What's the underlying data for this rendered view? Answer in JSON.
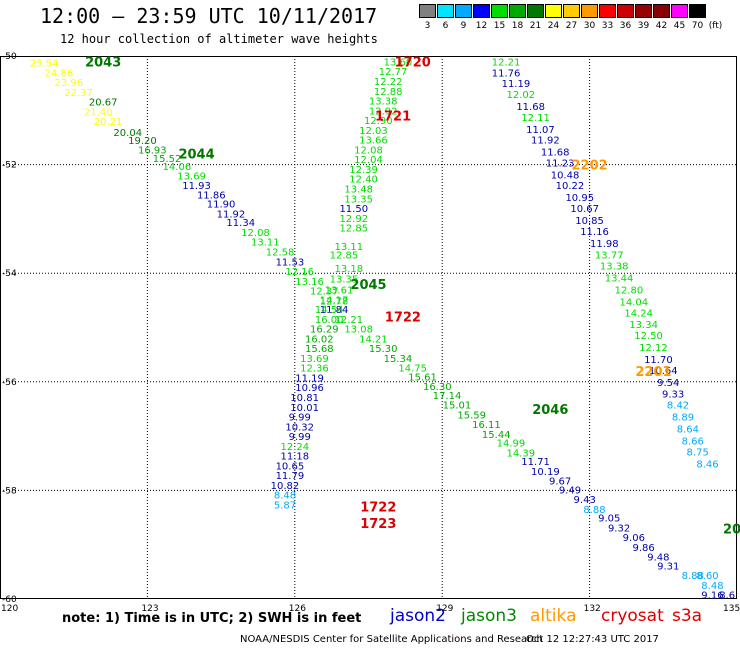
{
  "header": {
    "title": "12:00 – 23:59 UTC 10/11/2017",
    "subtitle": "12 hour collection of altimeter wave heights"
  },
  "color_scale": {
    "labels": [
      "3",
      "6",
      "9",
      "12",
      "15",
      "18",
      "21",
      "24",
      "27",
      "30",
      "33",
      "36",
      "39",
      "42",
      "45",
      "70",
      "(ft)"
    ],
    "colors": [
      "#808080",
      "#00e5ff",
      "#00aaff",
      "#0000ff",
      "#00dd00",
      "#00aa00",
      "#007700",
      "#ffff00",
      "#ffcc00",
      "#ff9900",
      "#ff0000",
      "#cc0000",
      "#990000",
      "#880000",
      "#ff00ff",
      "#000000"
    ]
  },
  "note": "note: 1) Time is in UTC; 2) SWH is in feet",
  "legend": [
    {
      "label": "jason2",
      "color": "#0000cc"
    },
    {
      "label": "jason3",
      "color": "#008800"
    },
    {
      "label": "altika",
      "color": "#ff9900"
    },
    {
      "label": "cryosat",
      "color": "#dd0000"
    },
    {
      "label": "s3a",
      "color": "#dd0000"
    }
  ],
  "footer": {
    "left": "NOAA/NESDIS Center for Satellite Applications and Research",
    "right": "Oct 12 12:27:43 UTC 2017"
  },
  "chart_data": {
    "type": "scatter",
    "xlim": [
      120,
      135
    ],
    "ylim": [
      -60,
      -50
    ],
    "grid": true,
    "x_ticks": [
      "120",
      "123",
      "126",
      "129",
      "132",
      "135"
    ],
    "y_ticks": [
      "-50",
      "-52",
      "-54",
      "-56",
      "-58",
      "-60"
    ],
    "pass_labels": [
      {
        "text": "2043",
        "lon": 122.1,
        "lat": -50.1,
        "color": "#007700"
      },
      {
        "text": "2044",
        "lon": 124.0,
        "lat": -51.8,
        "color": "#007700"
      },
      {
        "text": "2045",
        "lon": 127.5,
        "lat": -54.2,
        "color": "#007700"
      },
      {
        "text": "2046",
        "lon": 131.2,
        "lat": -56.5,
        "color": "#007700"
      },
      {
        "text": "20",
        "lon": 134.9,
        "lat": -58.7,
        "color": "#007700"
      },
      {
        "text": "1720",
        "lon": 128.4,
        "lat": -50.1,
        "color": "#dd0000"
      },
      {
        "text": "1721",
        "lon": 128.0,
        "lat": -51.1,
        "color": "#dd0000"
      },
      {
        "text": "1722",
        "lon": 128.2,
        "lat": -54.8,
        "color": "#dd0000"
      },
      {
        "text": "1722",
        "lon": 127.7,
        "lat": -58.3,
        "color": "#dd0000"
      },
      {
        "text": "1723",
        "lon": 127.7,
        "lat": -58.6,
        "color": "#dd0000"
      },
      {
        "text": "2202",
        "lon": 132.0,
        "lat": -52.0,
        "color": "#ff9900"
      },
      {
        "text": "2201",
        "lon": 133.3,
        "lat": -55.8,
        "color": "#ff9900"
      }
    ],
    "points": [
      {
        "lon": 120.9,
        "lat": -50.12,
        "v": "25.54",
        "c": "#ffff00"
      },
      {
        "lon": 121.2,
        "lat": -50.3,
        "v": "24.86",
        "c": "#ffff00"
      },
      {
        "lon": 121.4,
        "lat": -50.48,
        "v": "23.96",
        "c": "#ffff00"
      },
      {
        "lon": 121.6,
        "lat": -50.66,
        "v": "22.37",
        "c": "#ffff00"
      },
      {
        "lon": 122.1,
        "lat": -50.84,
        "v": "20.67",
        "c": "#007700"
      },
      {
        "lon": 122.0,
        "lat": -51.02,
        "v": "21.40",
        "c": "#ffff00"
      },
      {
        "lon": 122.2,
        "lat": -51.2,
        "v": "20.21",
        "c": "#ffff00"
      },
      {
        "lon": 122.6,
        "lat": -51.4,
        "v": "20.04",
        "c": "#007700"
      },
      {
        "lon": 122.9,
        "lat": -51.55,
        "v": "19.20",
        "c": "#007700"
      },
      {
        "lon": 123.1,
        "lat": -51.72,
        "v": "16.93",
        "c": "#00aa00"
      },
      {
        "lon": 123.4,
        "lat": -51.88,
        "v": "15.52",
        "c": "#00aa00"
      },
      {
        "lon": 123.6,
        "lat": -52.03,
        "v": "14.06",
        "c": "#00dd00"
      },
      {
        "lon": 123.9,
        "lat": -52.2,
        "v": "13.69",
        "c": "#00dd00"
      },
      {
        "lon": 124.0,
        "lat": -52.38,
        "v": "11.93",
        "c": "#0000aa"
      },
      {
        "lon": 124.3,
        "lat": -52.55,
        "v": "11.86",
        "c": "#0000aa"
      },
      {
        "lon": 124.5,
        "lat": -52.72,
        "v": "11.90",
        "c": "#0000aa"
      },
      {
        "lon": 124.7,
        "lat": -52.9,
        "v": "11.92",
        "c": "#0000aa"
      },
      {
        "lon": 124.9,
        "lat": -53.06,
        "v": "11.34",
        "c": "#0000aa"
      },
      {
        "lon": 125.2,
        "lat": -53.24,
        "v": "12.08",
        "c": "#00dd00"
      },
      {
        "lon": 125.4,
        "lat": -53.42,
        "v": "13.11",
        "c": "#00dd00"
      },
      {
        "lon": 125.7,
        "lat": -53.6,
        "v": "12.58",
        "c": "#00dd00"
      },
      {
        "lon": 125.9,
        "lat": -53.78,
        "v": "11.53",
        "c": "#0000aa"
      },
      {
        "lon": 126.1,
        "lat": -53.96,
        "v": "12.16",
        "c": "#00dd00"
      },
      {
        "lon": 126.3,
        "lat": -54.14,
        "v": "13.16",
        "c": "#00dd00"
      },
      {
        "lon": 126.6,
        "lat": -54.32,
        "v": "12.37",
        "c": "#00dd00"
      },
      {
        "lon": 126.8,
        "lat": -54.5,
        "v": "12.78",
        "c": "#00dd00"
      },
      {
        "lon": 126.8,
        "lat": -54.66,
        "v": "11.84",
        "c": "#0000aa"
      },
      {
        "lon": 127.1,
        "lat": -54.84,
        "v": "12.21",
        "c": "#00dd00"
      },
      {
        "lon": 127.3,
        "lat": -55.02,
        "v": "13.08",
        "c": "#00dd00"
      },
      {
        "lon": 127.6,
        "lat": -55.2,
        "v": "14.21",
        "c": "#00dd00"
      },
      {
        "lon": 127.8,
        "lat": -55.38,
        "v": "15.30",
        "c": "#00aa00"
      },
      {
        "lon": 128.1,
        "lat": -55.56,
        "v": "15.34",
        "c": "#00aa00"
      },
      {
        "lon": 128.4,
        "lat": -55.74,
        "v": "14.75",
        "c": "#00dd00"
      },
      {
        "lon": 128.6,
        "lat": -55.9,
        "v": "15.61",
        "c": "#00aa00"
      },
      {
        "lon": 128.9,
        "lat": -56.08,
        "v": "16.30",
        "c": "#00aa00"
      },
      {
        "lon": 129.1,
        "lat": -56.24,
        "v": "17.14",
        "c": "#00aa00"
      },
      {
        "lon": 129.3,
        "lat": -56.42,
        "v": "15.01",
        "c": "#00aa00"
      },
      {
        "lon": 129.6,
        "lat": -56.6,
        "v": "15.59",
        "c": "#00aa00"
      },
      {
        "lon": 129.9,
        "lat": -56.78,
        "v": "16.11",
        "c": "#00aa00"
      },
      {
        "lon": 130.1,
        "lat": -56.96,
        "v": "15.44",
        "c": "#00aa00"
      },
      {
        "lon": 130.4,
        "lat": -57.12,
        "v": "14.99",
        "c": "#00dd00"
      },
      {
        "lon": 130.6,
        "lat": -57.3,
        "v": "14.39",
        "c": "#00dd00"
      },
      {
        "lon": 130.9,
        "lat": -57.46,
        "v": "11.71",
        "c": "#0000aa"
      },
      {
        "lon": 131.1,
        "lat": -57.64,
        "v": "10.19",
        "c": "#0000aa"
      },
      {
        "lon": 131.4,
        "lat": -57.82,
        "v": "9.67",
        "c": "#0000aa"
      },
      {
        "lon": 131.6,
        "lat": -57.98,
        "v": "9.49",
        "c": "#0000aa"
      },
      {
        "lon": 131.9,
        "lat": -58.16,
        "v": "9.43",
        "c": "#0000aa"
      },
      {
        "lon": 132.1,
        "lat": -58.34,
        "v": "8.88",
        "c": "#00aaff"
      },
      {
        "lon": 132.4,
        "lat": -58.5,
        "v": "9.05",
        "c": "#0000aa"
      },
      {
        "lon": 132.6,
        "lat": -58.68,
        "v": "9.32",
        "c": "#0000aa"
      },
      {
        "lon": 132.9,
        "lat": -58.86,
        "v": "9.06",
        "c": "#0000aa"
      },
      {
        "lon": 133.1,
        "lat": -59.04,
        "v": "9.86",
        "c": "#0000aa"
      },
      {
        "lon": 133.4,
        "lat": -59.22,
        "v": "9.48",
        "c": "#0000aa"
      },
      {
        "lon": 133.6,
        "lat": -59.38,
        "v": "9.31",
        "c": "#0000aa"
      },
      {
        "lon": 134.1,
        "lat": -59.56,
        "v": "8.88",
        "c": "#00aaff"
      },
      {
        "lon": 134.4,
        "lat": -59.56,
        "v": "8.60",
        "c": "#00aaff"
      },
      {
        "lon": 134.5,
        "lat": -59.74,
        "v": "8.48",
        "c": "#00aaff"
      },
      {
        "lon": 134.5,
        "lat": -59.92,
        "v": "9.16",
        "c": "#0000aa"
      },
      {
        "lon": 134.8,
        "lat": -59.92,
        "v": "8.6",
        "c": "#0000aa"
      },
      {
        "lon": 128.1,
        "lat": -50.1,
        "v": "13.60",
        "c": "#00dd00"
      },
      {
        "lon": 128.0,
        "lat": -50.28,
        "v": "12.77",
        "c": "#00dd00"
      },
      {
        "lon": 127.9,
        "lat": -50.46,
        "v": "12.22",
        "c": "#00dd00"
      },
      {
        "lon": 127.9,
        "lat": -50.64,
        "v": "12.88",
        "c": "#00dd00"
      },
      {
        "lon": 127.8,
        "lat": -50.82,
        "v": "13.38",
        "c": "#00dd00"
      },
      {
        "lon": 127.8,
        "lat": -51.0,
        "v": "12.92",
        "c": "#00dd00"
      },
      {
        "lon": 127.7,
        "lat": -51.18,
        "v": "12.90",
        "c": "#00dd00"
      },
      {
        "lon": 127.6,
        "lat": -51.36,
        "v": "12.03",
        "c": "#00dd00"
      },
      {
        "lon": 127.6,
        "lat": -51.54,
        "v": "13.66",
        "c": "#00dd00"
      },
      {
        "lon": 127.5,
        "lat": -51.72,
        "v": "12.08",
        "c": "#00dd00"
      },
      {
        "lon": 127.5,
        "lat": -51.9,
        "v": "12.04",
        "c": "#00dd00"
      },
      {
        "lon": 127.4,
        "lat": -52.08,
        "v": "12.39",
        "c": "#00dd00"
      },
      {
        "lon": 127.4,
        "lat": -52.26,
        "v": "12.40",
        "c": "#00dd00"
      },
      {
        "lon": 127.3,
        "lat": -52.44,
        "v": "13.48",
        "c": "#00dd00"
      },
      {
        "lon": 127.3,
        "lat": -52.62,
        "v": "13.35",
        "c": "#00dd00"
      },
      {
        "lon": 127.2,
        "lat": -52.8,
        "v": "11.50",
        "c": "#0000aa"
      },
      {
        "lon": 127.2,
        "lat": -52.98,
        "v": "12.92",
        "c": "#00dd00"
      },
      {
        "lon": 127.2,
        "lat": -53.16,
        "v": "12.85",
        "c": "#00dd00"
      },
      {
        "lon": 127.1,
        "lat": -53.5,
        "v": "13.11",
        "c": "#00dd00"
      },
      {
        "lon": 127.0,
        "lat": -53.66,
        "v": "12.85",
        "c": "#00dd00"
      },
      {
        "lon": 127.1,
        "lat": -53.9,
        "v": "13.18",
        "c": "#00dd00"
      },
      {
        "lon": 127.0,
        "lat": -54.1,
        "v": "13.35",
        "c": "#00dd00"
      },
      {
        "lon": 126.9,
        "lat": -54.3,
        "v": "13.61",
        "c": "#00dd00"
      },
      {
        "lon": 126.8,
        "lat": -54.48,
        "v": "14.17",
        "c": "#00dd00"
      },
      {
        "lon": 126.7,
        "lat": -54.66,
        "v": "14.54",
        "c": "#00dd00"
      },
      {
        "lon": 126.7,
        "lat": -54.84,
        "v": "16.00",
        "c": "#00dd00"
      },
      {
        "lon": 126.6,
        "lat": -55.02,
        "v": "16.29",
        "c": "#00aa00"
      },
      {
        "lon": 126.5,
        "lat": -55.2,
        "v": "16.02",
        "c": "#00aa00"
      },
      {
        "lon": 126.5,
        "lat": -55.38,
        "v": "15.68",
        "c": "#00aa00"
      },
      {
        "lon": 126.4,
        "lat": -55.56,
        "v": "13.69",
        "c": "#00dd00"
      },
      {
        "lon": 126.4,
        "lat": -55.74,
        "v": "12.36",
        "c": "#00dd00"
      },
      {
        "lon": 126.3,
        "lat": -55.92,
        "v": "11.19",
        "c": "#0000aa"
      },
      {
        "lon": 126.3,
        "lat": -56.1,
        "v": "10.96",
        "c": "#0000aa"
      },
      {
        "lon": 126.2,
        "lat": -56.28,
        "v": "10.81",
        "c": "#0000aa"
      },
      {
        "lon": 126.2,
        "lat": -56.46,
        "v": "10.01",
        "c": "#0000aa"
      },
      {
        "lon": 126.1,
        "lat": -56.64,
        "v": "9.99",
        "c": "#0000aa"
      },
      {
        "lon": 126.1,
        "lat": -56.82,
        "v": "10.32",
        "c": "#0000aa"
      },
      {
        "lon": 126.1,
        "lat": -57.0,
        "v": "9.99",
        "c": "#0000aa"
      },
      {
        "lon": 126.0,
        "lat": -57.18,
        "v": "12.24",
        "c": "#00dd00"
      },
      {
        "lon": 126.0,
        "lat": -57.36,
        "v": "11.18",
        "c": "#0000aa"
      },
      {
        "lon": 125.9,
        "lat": -57.54,
        "v": "10.65",
        "c": "#0000aa"
      },
      {
        "lon": 125.9,
        "lat": -57.72,
        "v": "11.79",
        "c": "#0000aa"
      },
      {
        "lon": 125.8,
        "lat": -57.9,
        "v": "10.82",
        "c": "#0000aa"
      },
      {
        "lon": 125.8,
        "lat": -58.08,
        "v": "8.48",
        "c": "#00aaff"
      },
      {
        "lon": 125.8,
        "lat": -58.26,
        "v": "5.87",
        "c": "#00aaff"
      },
      {
        "lon": 130.3,
        "lat": -50.1,
        "v": "12.21",
        "c": "#00dd00"
      },
      {
        "lon": 130.3,
        "lat": -50.3,
        "v": "11.76",
        "c": "#0000aa"
      },
      {
        "lon": 130.5,
        "lat": -50.5,
        "v": "11.19",
        "c": "#0000aa"
      },
      {
        "lon": 130.6,
        "lat": -50.7,
        "v": "12.02",
        "c": "#00dd00"
      },
      {
        "lon": 130.8,
        "lat": -50.92,
        "v": "11.68",
        "c": "#0000aa"
      },
      {
        "lon": 130.9,
        "lat": -51.12,
        "v": "12.11",
        "c": "#00dd00"
      },
      {
        "lon": 131.0,
        "lat": -51.34,
        "v": "11.07",
        "c": "#0000aa"
      },
      {
        "lon": 131.1,
        "lat": -51.54,
        "v": "11.92",
        "c": "#0000aa"
      },
      {
        "lon": 131.3,
        "lat": -51.76,
        "v": "11.68",
        "c": "#0000aa"
      },
      {
        "lon": 131.4,
        "lat": -51.96,
        "v": "11.23",
        "c": "#0000aa"
      },
      {
        "lon": 131.5,
        "lat": -52.18,
        "v": "10.48",
        "c": "#0000aa"
      },
      {
        "lon": 131.6,
        "lat": -52.38,
        "v": "10.22",
        "c": "#0000aa"
      },
      {
        "lon": 131.8,
        "lat": -52.6,
        "v": "10.95",
        "c": "#0000aa"
      },
      {
        "lon": 131.9,
        "lat": -52.8,
        "v": "10.67",
        "c": "#0000aa"
      },
      {
        "lon": 132.0,
        "lat": -53.02,
        "v": "10.85",
        "c": "#0000aa"
      },
      {
        "lon": 132.1,
        "lat": -53.22,
        "v": "11.16",
        "c": "#0000aa"
      },
      {
        "lon": 132.3,
        "lat": -53.44,
        "v": "11.98",
        "c": "#0000aa"
      },
      {
        "lon": 132.4,
        "lat": -53.66,
        "v": "13.77",
        "c": "#00dd00"
      },
      {
        "lon": 132.5,
        "lat": -53.86,
        "v": "13.38",
        "c": "#00dd00"
      },
      {
        "lon": 132.6,
        "lat": -54.08,
        "v": "13.44",
        "c": "#00dd00"
      },
      {
        "lon": 132.8,
        "lat": -54.3,
        "v": "12.80",
        "c": "#00dd00"
      },
      {
        "lon": 132.9,
        "lat": -54.52,
        "v": "14.04",
        "c": "#00dd00"
      },
      {
        "lon": 133.0,
        "lat": -54.72,
        "v": "14.24",
        "c": "#00dd00"
      },
      {
        "lon": 133.1,
        "lat": -54.94,
        "v": "13.34",
        "c": "#00dd00"
      },
      {
        "lon": 133.2,
        "lat": -55.14,
        "v": "12.50",
        "c": "#00dd00"
      },
      {
        "lon": 133.3,
        "lat": -55.36,
        "v": "12.12",
        "c": "#00dd00"
      },
      {
        "lon": 133.4,
        "lat": -55.58,
        "v": "11.70",
        "c": "#0000aa"
      },
      {
        "lon": 133.5,
        "lat": -55.78,
        "v": "10.64",
        "c": "#0000aa"
      },
      {
        "lon": 133.6,
        "lat": -56.0,
        "v": "9.54",
        "c": "#0000aa"
      },
      {
        "lon": 133.7,
        "lat": -56.22,
        "v": "9.33",
        "c": "#0000aa"
      },
      {
        "lon": 133.8,
        "lat": -56.42,
        "v": "8.42",
        "c": "#00aaff"
      },
      {
        "lon": 133.9,
        "lat": -56.64,
        "v": "8.89",
        "c": "#00aaff"
      },
      {
        "lon": 134.0,
        "lat": -56.86,
        "v": "8.64",
        "c": "#00aaff"
      },
      {
        "lon": 134.1,
        "lat": -57.08,
        "v": "8.66",
        "c": "#00aaff"
      },
      {
        "lon": 134.2,
        "lat": -57.28,
        "v": "8.75",
        "c": "#00aaff"
      },
      {
        "lon": 134.4,
        "lat": -57.5,
        "v": "8.46",
        "c": "#00aaff"
      }
    ]
  }
}
